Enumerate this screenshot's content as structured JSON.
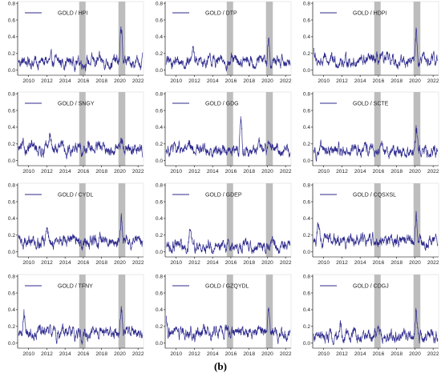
{
  "caption": "(b)",
  "colors": {
    "line": "#2e2a8e",
    "shade": "#bdbdbd",
    "axis": "#000000",
    "frame": "#d9d9d9"
  },
  "shared_axes": {
    "x_ticks": [
      "2010",
      "2012",
      "2014",
      "2016",
      "2018",
      "2020",
      "2022"
    ],
    "x_tick_values": [
      2010,
      2012,
      2014,
      2016,
      2018,
      2020,
      2022
    ],
    "y_ticks": [
      "0.0",
      "0.2",
      "0.4",
      "0.6",
      "0.8"
    ],
    "y_tick_values": [
      0.0,
      0.2,
      0.4,
      0.6,
      0.8
    ],
    "xlim": [
      2008.8,
      2022.6
    ],
    "ylim": [
      -0.06,
      0.82
    ],
    "shaded_periods": [
      [
        2015.55,
        2016.25
      ],
      [
        2019.85,
        2020.6
      ]
    ]
  },
  "chart_data": [
    {
      "type": "line",
      "legend": "GOLD / HPI",
      "base": 0.1,
      "peaks": [
        [
          2020.15,
          0.56
        ]
      ]
    },
    {
      "type": "line",
      "legend": "GOLD / DTP",
      "base": 0.1,
      "peaks": [
        [
          2020.15,
          0.46
        ],
        [
          2011.8,
          0.3
        ]
      ]
    },
    {
      "type": "line",
      "legend": "GOLD / HDPI",
      "base": 0.11,
      "peaks": [
        [
          2020.15,
          0.58
        ],
        [
          2008.9,
          0.28
        ]
      ]
    },
    {
      "type": "line",
      "legend": "GOLD / SNGY",
      "base": 0.14,
      "peaks": [
        [
          2020.15,
          0.32
        ],
        [
          2012.3,
          0.3
        ]
      ]
    },
    {
      "type": "line",
      "legend": "GOLD / GDG",
      "base": 0.13,
      "peaks": [
        [
          2017.1,
          0.6
        ],
        [
          2020.15,
          0.32
        ]
      ]
    },
    {
      "type": "line",
      "legend": "GOLD / SCTE",
      "base": 0.12,
      "peaks": [
        [
          2020.15,
          0.42
        ]
      ]
    },
    {
      "type": "line",
      "legend": "GOLD / CYDL",
      "base": 0.13,
      "peaks": [
        [
          2020.15,
          0.52
        ],
        [
          2012.0,
          0.3
        ]
      ]
    },
    {
      "type": "line",
      "legend": "GOLD / GDEP",
      "base": 0.07,
      "peaks": [
        [
          2011.5,
          0.25
        ]
      ]
    },
    {
      "type": "line",
      "legend": "GOLD / CQSXSL",
      "base": 0.13,
      "peaks": [
        [
          2020.15,
          0.58
        ],
        [
          2009.4,
          0.4
        ]
      ]
    },
    {
      "type": "line",
      "legend": "GOLD / TFNY",
      "base": 0.12,
      "peaks": [
        [
          2009.5,
          0.43
        ],
        [
          2020.15,
          0.45
        ]
      ]
    },
    {
      "type": "line",
      "legend": "GOLD / GZQYDL",
      "base": 0.12,
      "peaks": [
        [
          2008.9,
          0.36
        ],
        [
          2020.15,
          0.42
        ]
      ]
    },
    {
      "type": "line",
      "legend": "GOLD / CDGJ",
      "base": 0.08,
      "peaks": [
        [
          2020.15,
          0.42
        ],
        [
          2011.8,
          0.3
        ]
      ]
    }
  ]
}
